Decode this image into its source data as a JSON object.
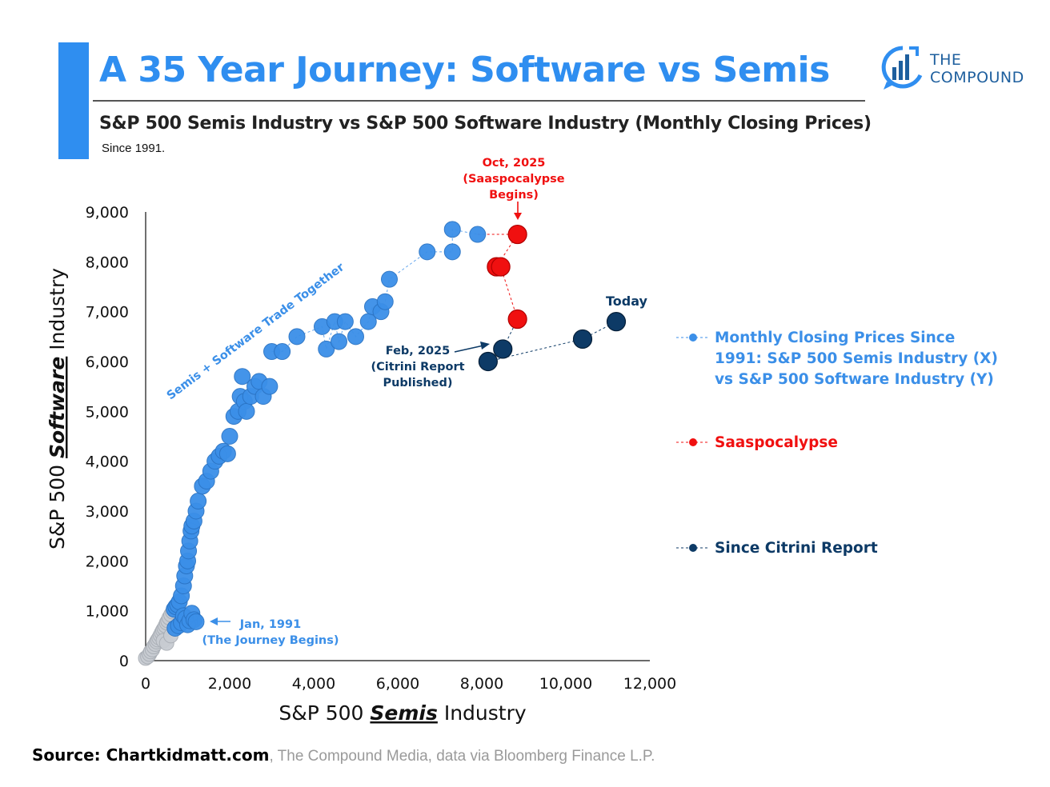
{
  "header": {
    "title": "A 35 Year Journey: Software vs Semis",
    "subtitle": "S&P 500 Semis Industry vs S&P 500 Software Industry (Monthly Closing Prices)",
    "since": "Since 1991.",
    "logo_line1": "THE",
    "logo_line2": "COMPOUND"
  },
  "source": {
    "bold": "Source: Chartkidmatt.com",
    "rest": ", The Compound Media, data via Bloomberg Finance L.P."
  },
  "colors": {
    "main": "#3b8fe8",
    "saaspocalypse": "#f01010",
    "citrini": "#0d3a66",
    "early": "#c8ccd2"
  },
  "chart_data": {
    "type": "scatter",
    "title": "",
    "xlabel_pre": "S&P 500 ",
    "xlabel_em": "Semis",
    "xlabel_post": " Industry",
    "ylabel_pre": "S&P 500 ",
    "ylabel_em": "Software",
    "ylabel_post": " Industry",
    "xlim": [
      0,
      12000
    ],
    "ylim": [
      0,
      9000
    ],
    "xticks": [
      0,
      2000,
      4000,
      6000,
      8000,
      10000,
      12000
    ],
    "yticks": [
      0,
      1000,
      2000,
      3000,
      4000,
      5000,
      6000,
      7000,
      8000,
      9000
    ],
    "x_tick_labels": [
      "0",
      "2,000",
      "4,000",
      "6,000",
      "8,000",
      "10,000",
      "12,000"
    ],
    "y_tick_labels": [
      "0",
      "1,000",
      "2,000",
      "3,000",
      "4,000",
      "5,000",
      "6,000",
      "7,000",
      "8,000",
      "9,000"
    ],
    "grid": false,
    "legend_position": "right",
    "series": [
      {
        "name": "Monthly Closing Prices Since 1991: S&P 500 Semis Industry (X) vs S&P 500 Software Industry (Y)",
        "points": [
          [
            0,
            50
          ],
          [
            50,
            80
          ],
          [
            90,
            130
          ],
          [
            120,
            180
          ],
          [
            160,
            220
          ],
          [
            190,
            280
          ],
          [
            230,
            330
          ],
          [
            260,
            380
          ],
          [
            290,
            420
          ],
          [
            320,
            460
          ],
          [
            350,
            510
          ],
          [
            380,
            560
          ],
          [
            410,
            610
          ],
          [
            440,
            650
          ],
          [
            470,
            700
          ],
          [
            500,
            760
          ],
          [
            530,
            800
          ],
          [
            560,
            860
          ],
          [
            600,
            920
          ],
          [
            640,
            980
          ],
          [
            680,
            1030
          ],
          [
            720,
            1080
          ],
          [
            760,
            1120
          ],
          [
            800,
            1180
          ],
          [
            420,
            400
          ],
          [
            500,
            350
          ],
          [
            600,
            500
          ],
          [
            700,
            650
          ],
          [
            780,
            700
          ],
          [
            850,
            760
          ],
          [
            900,
            900
          ],
          [
            950,
            850
          ],
          [
            1000,
            720
          ],
          [
            1050,
            800
          ],
          [
            1100,
            950
          ],
          [
            1150,
            820
          ],
          [
            1200,
            780
          ],
          [
            850,
            1300
          ],
          [
            900,
            1500
          ],
          [
            930,
            1700
          ],
          [
            970,
            1900
          ],
          [
            1000,
            2000
          ],
          [
            1020,
            2200
          ],
          [
            1050,
            2400
          ],
          [
            1080,
            2600
          ],
          [
            1100,
            2700
          ],
          [
            1150,
            2800
          ],
          [
            1200,
            3000
          ],
          [
            1250,
            3200
          ],
          [
            1350,
            3500
          ],
          [
            1450,
            3600
          ],
          [
            1550,
            3800
          ],
          [
            1650,
            4000
          ],
          [
            1750,
            4100
          ],
          [
            1850,
            4200
          ],
          [
            1950,
            4150
          ],
          [
            2000,
            4500
          ],
          [
            2100,
            4900
          ],
          [
            2200,
            5000
          ],
          [
            2250,
            5300
          ],
          [
            2300,
            5700
          ],
          [
            2350,
            5200
          ],
          [
            2400,
            5000
          ],
          [
            2500,
            5300
          ],
          [
            2600,
            5500
          ],
          [
            2700,
            5600
          ],
          [
            2800,
            5300
          ],
          [
            2950,
            5500
          ],
          [
            3000,
            6200
          ],
          [
            3250,
            6200
          ],
          [
            3600,
            6500
          ],
          [
            4200,
            6700
          ],
          [
            4300,
            6250
          ],
          [
            4500,
            6800
          ],
          [
            4600,
            6400
          ],
          [
            4750,
            6800
          ],
          [
            5000,
            6500
          ],
          [
            5300,
            6800
          ],
          [
            5400,
            7100
          ],
          [
            5600,
            7000
          ],
          [
            5700,
            7200
          ],
          [
            5800,
            7650
          ],
          [
            6700,
            8200
          ],
          [
            7300,
            8200
          ],
          [
            7300,
            8650
          ],
          [
            7900,
            8550
          ]
        ]
      },
      {
        "name": "Saaspocalypse",
        "points": [
          [
            8850,
            8550
          ],
          [
            8350,
            7900
          ],
          [
            8450,
            7900
          ],
          [
            8850,
            6850
          ]
        ]
      },
      {
        "name": "Since Citrini Report",
        "points": [
          [
            8500,
            6250
          ],
          [
            8150,
            6000
          ],
          [
            10400,
            6450
          ],
          [
            11200,
            6800
          ]
        ]
      }
    ],
    "annotations": [
      {
        "lines": [
          "Oct, 2025",
          "(Saaspocalypse",
          "Begins)"
        ]
      },
      {
        "lines": [
          "Today"
        ]
      },
      {
        "lines": [
          "Feb, 2025",
          "(Citrini Report",
          "Published)"
        ]
      },
      {
        "lines": [
          "Jan, 1991",
          "(The Journey Begins)"
        ]
      },
      {
        "lines": [
          "Semis + Software Trade Together"
        ]
      }
    ]
  }
}
